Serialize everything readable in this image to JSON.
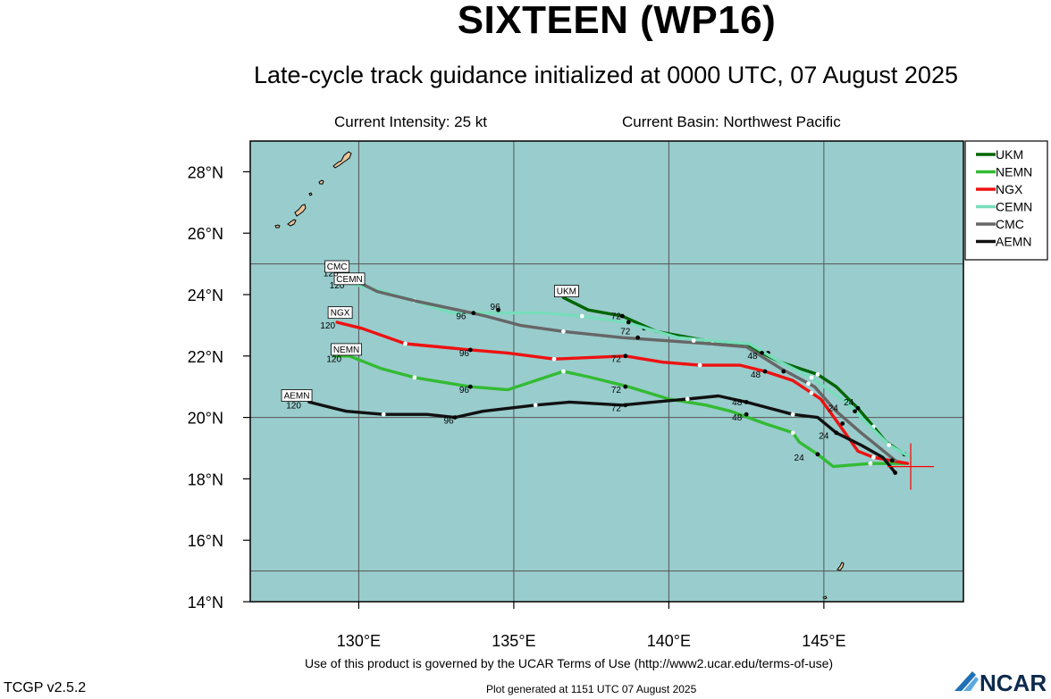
{
  "header": {
    "title": "SIXTEEN (WP16)",
    "subtitle": "Late-cycle track guidance initialized at 0000 UTC, 07 August 2025",
    "intensity": "Current Intensity: 25 kt",
    "basin": "Current Basin: Northwest Pacific"
  },
  "footer": {
    "terms": "Use of this product is governed by the UCAR Terms of Use (http://www2.ucar.edu/terms-of-use)",
    "version": "TCGP v2.5.2",
    "generated": "Plot generated at 1151 UTC   07 August 2025",
    "logo": "NCAR"
  },
  "colors": {
    "ocean": "#99cccc",
    "land": "#e8c49a",
    "grid": "#555555",
    "storm_marker": "#ff0000"
  },
  "chart_data": {
    "type": "line",
    "map": "track",
    "xlim": [
      126.5,
      149.5
    ],
    "ylim": [
      14,
      29
    ],
    "x_ticks": [
      130,
      135,
      140,
      145
    ],
    "x_tick_labels": [
      "130°E",
      "135°E",
      "140°E",
      "145°E"
    ],
    "y_ticks": [
      14,
      16,
      18,
      20,
      22,
      24,
      26,
      28
    ],
    "y_tick_labels": [
      "14°N",
      "16°N",
      "18°N",
      "20°N",
      "22°N",
      "24°N",
      "26°N",
      "28°N"
    ],
    "grid_lon": [
      130,
      135,
      140,
      145
    ],
    "grid_lat": [
      15,
      20,
      25
    ],
    "legend_position": "right",
    "current_position": [
      147.8,
      18.4
    ],
    "series": [
      {
        "name": "UKM",
        "color": "#006600",
        "points": [
          [
            147.6,
            18.8
          ],
          [
            147.0,
            19.2
          ],
          [
            146.6,
            19.7
          ],
          [
            146.1,
            20.3
          ],
          [
            145.4,
            21.0
          ],
          [
            144.8,
            21.4
          ],
          [
            143.6,
            21.8
          ],
          [
            142.6,
            22.3
          ],
          [
            141.2,
            22.5
          ],
          [
            139.6,
            22.8
          ],
          [
            138.5,
            23.3
          ],
          [
            137.4,
            23.5
          ],
          [
            136.6,
            23.9
          ]
        ],
        "wdots": [
          [
            146.6,
            19.7
          ],
          [
            144.8,
            21.4
          ],
          [
            141.2,
            22.5
          ]
        ],
        "bdots": [
          [
            147.6,
            18.8
          ],
          [
            146.1,
            20.3
          ],
          [
            143.2,
            22.1
          ],
          [
            139.2,
            22.9
          ],
          [
            138.5,
            23.3
          ]
        ],
        "tau": [
          {
            "t": "72",
            "x": 138.3,
            "y": 23.2
          }
        ],
        "endlabel": {
          "t": "UKM",
          "x": 136.7,
          "y": 24.1
        }
      },
      {
        "name": "NEMN",
        "color": "#33bb33",
        "points": [
          [
            147.6,
            18.5
          ],
          [
            146.5,
            18.5
          ],
          [
            145.3,
            18.4
          ],
          [
            144.8,
            18.8
          ],
          [
            144.2,
            19.2
          ],
          [
            144.0,
            19.5
          ],
          [
            143.1,
            19.8
          ],
          [
            142.0,
            20.2
          ],
          [
            141.2,
            20.4
          ],
          [
            140.0,
            20.6
          ],
          [
            138.7,
            21.0
          ],
          [
            137.5,
            21.3
          ],
          [
            136.6,
            21.5
          ],
          [
            134.8,
            20.9
          ],
          [
            133.6,
            21.0
          ],
          [
            131.8,
            21.3
          ],
          [
            130.7,
            21.6
          ],
          [
            129.7,
            22.0
          ],
          [
            129.2,
            22.0
          ]
        ],
        "wdots": [
          [
            146.5,
            18.5
          ],
          [
            144.0,
            19.5
          ],
          [
            140.6,
            20.6
          ],
          [
            136.6,
            21.5
          ],
          [
            131.8,
            21.3
          ]
        ],
        "bdots": [
          [
            144.8,
            18.8
          ],
          [
            142.5,
            20.1
          ],
          [
            138.6,
            21.0
          ],
          [
            133.6,
            21.0
          ]
        ],
        "tau": [
          {
            "t": "24",
            "x": 144.2,
            "y": 18.6
          },
          {
            "t": "48",
            "x": 142.2,
            "y": 19.9
          },
          {
            "t": "72",
            "x": 138.3,
            "y": 20.8
          },
          {
            "t": "96",
            "x": 133.4,
            "y": 20.8
          },
          {
            "t": "120",
            "x": 129.2,
            "y": 21.8
          }
        ],
        "endlabel": {
          "t": "NEMN",
          "x": 129.6,
          "y": 22.2
        }
      },
      {
        "name": "NGX",
        "color": "#ee1111",
        "points": [
          [
            147.7,
            18.5
          ],
          [
            146.6,
            18.7
          ],
          [
            146.1,
            18.9
          ],
          [
            145.4,
            19.9
          ],
          [
            144.9,
            20.6
          ],
          [
            144.0,
            21.2
          ],
          [
            143.1,
            21.5
          ],
          [
            142.3,
            21.7
          ],
          [
            141.0,
            21.7
          ],
          [
            139.8,
            21.8
          ],
          [
            138.6,
            22.0
          ],
          [
            136.3,
            21.9
          ],
          [
            134.8,
            22.1
          ],
          [
            133.6,
            22.2
          ],
          [
            131.5,
            22.4
          ],
          [
            130.1,
            22.9
          ],
          [
            129.3,
            23.1
          ]
        ],
        "wdots": [
          [
            146.6,
            18.7
          ],
          [
            144.6,
            20.8
          ],
          [
            141.0,
            21.7
          ],
          [
            136.3,
            21.9
          ],
          [
            131.5,
            22.4
          ]
        ],
        "bdots": [
          [
            145.6,
            19.8
          ],
          [
            143.1,
            21.5
          ],
          [
            138.6,
            22.0
          ],
          [
            133.6,
            22.2
          ]
        ],
        "tau": [
          {
            "t": "24",
            "x": 145.3,
            "y": 20.2
          },
          {
            "t": "48",
            "x": 142.8,
            "y": 21.3
          },
          {
            "t": "72",
            "x": 138.3,
            "y": 21.8
          },
          {
            "t": "96",
            "x": 133.4,
            "y": 22.0
          },
          {
            "t": "120",
            "x": 129.0,
            "y": 22.9
          }
        ],
        "endlabel": {
          "t": "NGX",
          "x": 129.4,
          "y": 23.4
        }
      },
      {
        "name": "CEMN",
        "color": "#77ddbb",
        "points": [
          [
            147.8,
            18.7
          ],
          [
            147.1,
            19.1
          ],
          [
            146.3,
            19.9
          ],
          [
            145.7,
            20.5
          ],
          [
            144.6,
            21.3
          ],
          [
            143.6,
            21.8
          ],
          [
            142.6,
            22.4
          ],
          [
            141.3,
            22.5
          ],
          [
            140.3,
            22.6
          ],
          [
            138.6,
            23.1
          ],
          [
            137.2,
            23.3
          ],
          [
            136.0,
            23.4
          ],
          [
            134.8,
            23.4
          ],
          [
            133.8,
            23.4
          ],
          [
            133.0,
            23.4
          ],
          [
            131.8,
            23.8
          ],
          [
            130.8,
            24.1
          ],
          [
            129.6,
            24.4
          ]
        ],
        "wdots": [
          [
            147.1,
            19.1
          ],
          [
            146.0,
            20.2
          ],
          [
            144.6,
            21.3
          ],
          [
            141.4,
            22.4
          ],
          [
            137.2,
            23.3
          ],
          [
            131.8,
            23.8
          ]
        ],
        "bdots": [
          [
            146.0,
            20.2
          ],
          [
            143.0,
            22.1
          ],
          [
            138.7,
            23.1
          ],
          [
            134.5,
            23.5
          ]
        ],
        "tau": [
          {
            "t": "24",
            "x": 145.8,
            "y": 20.4
          },
          {
            "t": "48",
            "x": 142.7,
            "y": 21.9
          },
          {
            "t": "72",
            "x": 138.6,
            "y": 22.7
          },
          {
            "t": "96",
            "x": 134.4,
            "y": 23.5
          },
          {
            "t": "120",
            "x": 129.3,
            "y": 24.2
          }
        ],
        "endlabel": {
          "t": "CEMN",
          "x": 129.7,
          "y": 24.5
        }
      },
      {
        "name": "CMC",
        "color": "#666666",
        "points": [
          [
            147.3,
            18.6
          ],
          [
            146.2,
            19.5
          ],
          [
            145.4,
            20.2
          ],
          [
            144.7,
            21.0
          ],
          [
            143.6,
            21.6
          ],
          [
            142.5,
            22.3
          ],
          [
            141.3,
            22.4
          ],
          [
            139.9,
            22.5
          ],
          [
            138.5,
            22.6
          ],
          [
            136.6,
            22.8
          ],
          [
            135.2,
            23.0
          ],
          [
            134.1,
            23.3
          ],
          [
            133.2,
            23.5
          ],
          [
            131.8,
            23.8
          ],
          [
            130.6,
            24.1
          ],
          [
            129.6,
            24.6
          ]
        ],
        "wdots": [
          [
            144.5,
            21.1
          ],
          [
            140.8,
            22.5
          ],
          [
            136.6,
            22.8
          ]
        ],
        "bdots": [
          [
            147.2,
            18.6
          ],
          [
            143.7,
            21.5
          ],
          [
            139.0,
            22.6
          ],
          [
            133.7,
            23.4
          ]
        ],
        "tau": [
          {
            "t": "96",
            "x": 133.3,
            "y": 23.2
          },
          {
            "t": "120",
            "x": 129.1,
            "y": 24.6
          }
        ],
        "endlabel": {
          "t": "CMC",
          "x": 129.3,
          "y": 24.9
        }
      },
      {
        "name": "AEMN",
        "color": "#111111",
        "points": [
          [
            147.3,
            18.2
          ],
          [
            146.9,
            18.7
          ],
          [
            146.2,
            19.1
          ],
          [
            145.4,
            19.5
          ],
          [
            144.8,
            20.0
          ],
          [
            144.0,
            20.1
          ],
          [
            142.5,
            20.5
          ],
          [
            141.6,
            20.7
          ],
          [
            140.6,
            20.6
          ],
          [
            139.5,
            20.5
          ],
          [
            138.5,
            20.4
          ],
          [
            136.8,
            20.5
          ],
          [
            135.7,
            20.4
          ],
          [
            134.0,
            20.2
          ],
          [
            133.1,
            20.0
          ],
          [
            132.2,
            20.1
          ],
          [
            130.8,
            20.1
          ],
          [
            129.6,
            20.2
          ],
          [
            128.4,
            20.5
          ]
        ],
        "wdots": [
          [
            144.0,
            20.1
          ],
          [
            140.6,
            20.6
          ],
          [
            135.7,
            20.4
          ],
          [
            130.8,
            20.1
          ]
        ],
        "bdots": [
          [
            147.3,
            18.2
          ],
          [
            145.4,
            19.5
          ],
          [
            142.5,
            20.5
          ],
          [
            138.6,
            20.4
          ],
          [
            133.1,
            20.0
          ]
        ],
        "tau": [
          {
            "t": "24",
            "x": 145.0,
            "y": 19.3
          },
          {
            "t": "48",
            "x": 142.2,
            "y": 20.4
          },
          {
            "t": "72",
            "x": 138.3,
            "y": 20.2
          },
          {
            "t": "96",
            "x": 132.9,
            "y": 19.8
          },
          {
            "t": "120",
            "x": 127.9,
            "y": 20.3
          }
        ],
        "endlabel": {
          "t": "AEMN",
          "x": 128.0,
          "y": 20.7
        }
      }
    ]
  }
}
